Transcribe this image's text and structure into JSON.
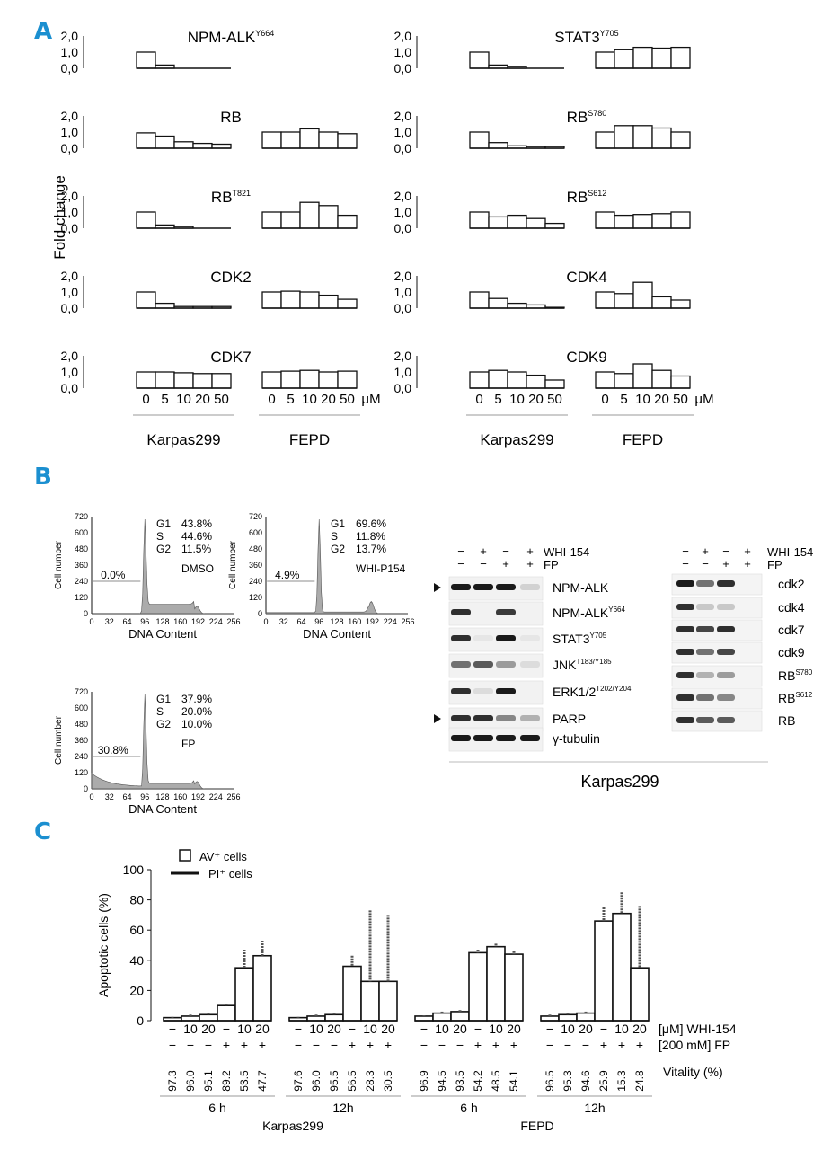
{
  "panels": {
    "A": "A",
    "B": "B",
    "C": "C"
  },
  "colors": {
    "accent": "#1b8fd0",
    "ink": "#111111",
    "band": "#1a1a1a",
    "hist": "#888888"
  },
  "chart_data": [
    {
      "type": "bar",
      "panel": "A",
      "ylabel": "Fold change",
      "yticks": [
        "2,0",
        "1,0",
        "0,0"
      ],
      "ylim": [
        0,
        2
      ],
      "dose_unit": "μM",
      "doses": [
        "0",
        "5",
        "10",
        "20",
        "50"
      ],
      "cell_lines": [
        "Karpas299",
        "FEPD"
      ],
      "subplots": [
        {
          "col": 0,
          "row": 0,
          "target": "NPM-ALK",
          "site": "Y664",
          "karpas": [
            1.0,
            0.2,
            0,
            0,
            0
          ],
          "fepd": [
            0,
            0,
            0,
            0,
            0
          ]
        },
        {
          "col": 1,
          "row": 0,
          "target": "STAT3",
          "site": "Y705",
          "karpas": [
            1.0,
            0.2,
            0.1,
            0,
            0
          ],
          "fepd": [
            1.0,
            1.15,
            1.3,
            1.25,
            1.3
          ]
        },
        {
          "col": 0,
          "row": 1,
          "target": "RB",
          "site": "",
          "karpas": [
            0.95,
            0.75,
            0.4,
            0.3,
            0.25
          ],
          "fepd": [
            1.0,
            1.0,
            1.2,
            1.0,
            0.9
          ]
        },
        {
          "col": 1,
          "row": 1,
          "target": "RB",
          "site": "S780",
          "karpas": [
            1.0,
            0.35,
            0.15,
            0.1,
            0.1
          ],
          "fepd": [
            1.0,
            1.4,
            1.4,
            1.25,
            1.0
          ]
        },
        {
          "col": 0,
          "row": 2,
          "target": "RB",
          "site": "T821",
          "karpas": [
            1.0,
            0.2,
            0.1,
            0,
            0
          ],
          "fepd": [
            1.0,
            1.0,
            1.6,
            1.4,
            0.8
          ]
        },
        {
          "col": 1,
          "row": 2,
          "target": "RB",
          "site": "S612",
          "karpas": [
            1.0,
            0.7,
            0.8,
            0.6,
            0.3
          ],
          "fepd": [
            1.0,
            0.8,
            0.85,
            0.9,
            1.0
          ]
        },
        {
          "col": 0,
          "row": 3,
          "target": "CDK2",
          "site": "",
          "karpas": [
            1.0,
            0.3,
            0.1,
            0.1,
            0.1
          ],
          "fepd": [
            1.0,
            1.05,
            1.0,
            0.8,
            0.55
          ]
        },
        {
          "col": 1,
          "row": 3,
          "target": "CDK4",
          "site": "",
          "karpas": [
            1.0,
            0.6,
            0.3,
            0.2,
            0.05
          ],
          "fepd": [
            1.0,
            0.9,
            1.6,
            0.7,
            0.5
          ]
        },
        {
          "col": 0,
          "row": 4,
          "target": "CDK7",
          "site": "",
          "karpas": [
            1.0,
            1.0,
            0.95,
            0.9,
            0.9
          ],
          "fepd": [
            1.0,
            1.05,
            1.1,
            1.0,
            1.05
          ]
        },
        {
          "col": 1,
          "row": 4,
          "target": "CDK9",
          "site": "",
          "karpas": [
            1.0,
            1.1,
            1.0,
            0.8,
            0.5
          ],
          "fepd": [
            1.0,
            0.9,
            1.5,
            1.1,
            0.75
          ]
        }
      ]
    },
    {
      "type": "histogram",
      "panel": "B",
      "xlabel": "DNA Content",
      "ylabel": "Cell number",
      "xticks": [
        "0",
        "32",
        "64",
        "96",
        "128",
        "160",
        "192",
        "224",
        "256"
      ],
      "yticks": [
        "720",
        "600",
        "480",
        "360",
        "240",
        "120",
        "0"
      ],
      "phase_labels": [
        "G1",
        "S",
        "G2"
      ],
      "plots": [
        {
          "condition": "DMSO",
          "subg1": "0.0%",
          "g1": "43.8%",
          "s": "44.6%",
          "g2": "11.5%",
          "peak": 700
        },
        {
          "condition": "WHI-P154",
          "subg1": "4.9%",
          "g1": "69.6%",
          "s": "11.8%",
          "g2": "13.7%",
          "peak": 700
        },
        {
          "condition": "FP",
          "subg1": "30.8%",
          "g1": "37.9%",
          "s": "20.0%",
          "g2": "10.0%",
          "peak": 700
        }
      ]
    },
    {
      "type": "western_blot",
      "panel": "B",
      "cell_line": "Karpas299",
      "treatments": {
        "whi_label": "WHI-154",
        "fp_label": "FP",
        "whi": [
          "−",
          "+",
          "−",
          "+"
        ],
        "fp": [
          "−",
          "−",
          "+",
          "+"
        ]
      },
      "left_rows": [
        {
          "label": "NPM-ALK",
          "sup": "",
          "arrow": true
        },
        {
          "label": "NPM-ALK",
          "sup": "Y664",
          "arrow": false
        },
        {
          "label": "STAT3",
          "sup": "Y705",
          "arrow": false
        },
        {
          "label": "JNK",
          "sup": "T183/Y185",
          "arrow": false
        },
        {
          "label": "ERK1/2",
          "sup": "T202/Y204",
          "arrow": false
        },
        {
          "label": "PARP",
          "sup": "",
          "arrow": true
        },
        {
          "label": "γ-tubulin",
          "sup": "",
          "arrow": false
        }
      ],
      "right_rows": [
        {
          "label": "cdk2",
          "sup": ""
        },
        {
          "label": "cdk4",
          "sup": ""
        },
        {
          "label": "cdk7",
          "sup": ""
        },
        {
          "label": "cdk9",
          "sup": ""
        },
        {
          "label": "RB",
          "sup": "S780"
        },
        {
          "label": "RB",
          "sup": "S612"
        },
        {
          "label": "RB",
          "sup": ""
        }
      ]
    },
    {
      "type": "bar",
      "panel": "C",
      "ylabel": "Apoptotic cells (%)",
      "ylim": [
        0,
        100
      ],
      "yticks": [
        "100",
        "80",
        "60",
        "40",
        "20",
        "0"
      ],
      "legend": [
        "AV⁺ cells",
        "PI⁺ cells"
      ],
      "row_labels": [
        "[μM] WHI-154",
        "[200 mM] FP",
        "Vitality (%)"
      ],
      "whi_doses": [
        "−",
        "10",
        "20",
        "−",
        "10",
        "20"
      ],
      "fp_states": [
        "−",
        "−",
        "−",
        "+",
        "+",
        "+"
      ],
      "groups": [
        {
          "time": "6 h",
          "cell_line": "Karpas299",
          "av": [
            2,
            3,
            4,
            10,
            35,
            43
          ],
          "pi_top": [
            2.5,
            4,
            5,
            11,
            47,
            53
          ],
          "vitality": [
            "97.3",
            "96.0",
            "95.1",
            "89.2",
            "53.5",
            "47.7"
          ]
        },
        {
          "time": "12h",
          "cell_line": "Karpas299",
          "av": [
            2,
            3,
            4,
            36,
            26,
            26
          ],
          "pi_top": [
            2.5,
            4,
            5,
            43,
            73,
            70
          ],
          "vitality": [
            "97.6",
            "96.0",
            "95.5",
            "56.5",
            "28.3",
            "30.5"
          ]
        },
        {
          "time": "6 h",
          "cell_line": "FEPD",
          "av": [
            3,
            5,
            6,
            45,
            49,
            44
          ],
          "pi_top": [
            3.5,
            6,
            7,
            47,
            51,
            46
          ],
          "vitality": [
            "96.9",
            "94.5",
            "93.5",
            "54.2",
            "48.5",
            "54.1"
          ]
        },
        {
          "time": "12h",
          "cell_line": "FEPD",
          "av": [
            3,
            4,
            5,
            66,
            71,
            35
          ],
          "pi_top": [
            4,
            5,
            6,
            75,
            85,
            76
          ],
          "vitality": [
            "96.5",
            "95.3",
            "94.6",
            "25.9",
            "15.3",
            "24.8"
          ]
        }
      ]
    }
  ]
}
